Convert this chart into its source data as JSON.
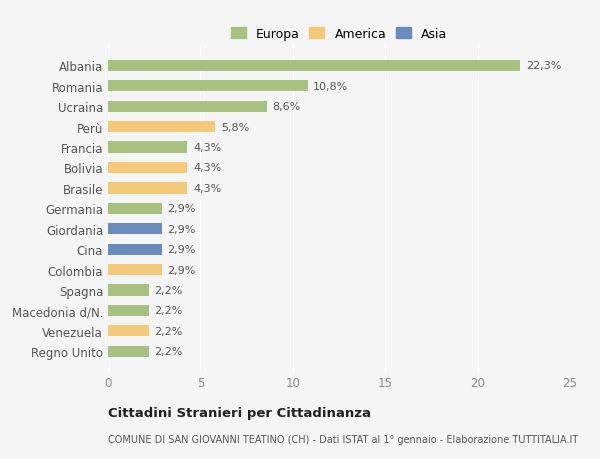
{
  "countries": [
    "Albania",
    "Romania",
    "Ucraina",
    "Perù",
    "Francia",
    "Bolivia",
    "Brasile",
    "Germania",
    "Giordania",
    "Cina",
    "Colombia",
    "Spagna",
    "Macedonia d/N.",
    "Venezuela",
    "Regno Unito"
  ],
  "values": [
    22.3,
    10.8,
    8.6,
    5.8,
    4.3,
    4.3,
    4.3,
    2.9,
    2.9,
    2.9,
    2.9,
    2.2,
    2.2,
    2.2,
    2.2
  ],
  "labels": [
    "22,3%",
    "10,8%",
    "8,6%",
    "5,8%",
    "4,3%",
    "4,3%",
    "4,3%",
    "2,9%",
    "2,9%",
    "2,9%",
    "2,9%",
    "2,2%",
    "2,2%",
    "2,2%",
    "2,2%"
  ],
  "continents": [
    "Europa",
    "Europa",
    "Europa",
    "America",
    "Europa",
    "America",
    "America",
    "Europa",
    "Asia",
    "Asia",
    "America",
    "Europa",
    "Europa",
    "America",
    "Europa"
  ],
  "colors": {
    "Europa": "#a8c080",
    "America": "#f5c97a",
    "Asia": "#6b8cba"
  },
  "xlim": [
    0,
    25
  ],
  "xticks": [
    0,
    5,
    10,
    15,
    20,
    25
  ],
  "title": "Cittadini Stranieri per Cittadinanza",
  "subtitle": "COMUNE DI SAN GIOVANNI TEATINO (CH) - Dati ISTAT al 1° gennaio - Elaborazione TUTTITALIA.IT",
  "background_color": "#f5f5f5",
  "bar_height": 0.55,
  "label_fontsize": 8,
  "tick_fontsize": 8.5,
  "legend_fontsize": 9
}
